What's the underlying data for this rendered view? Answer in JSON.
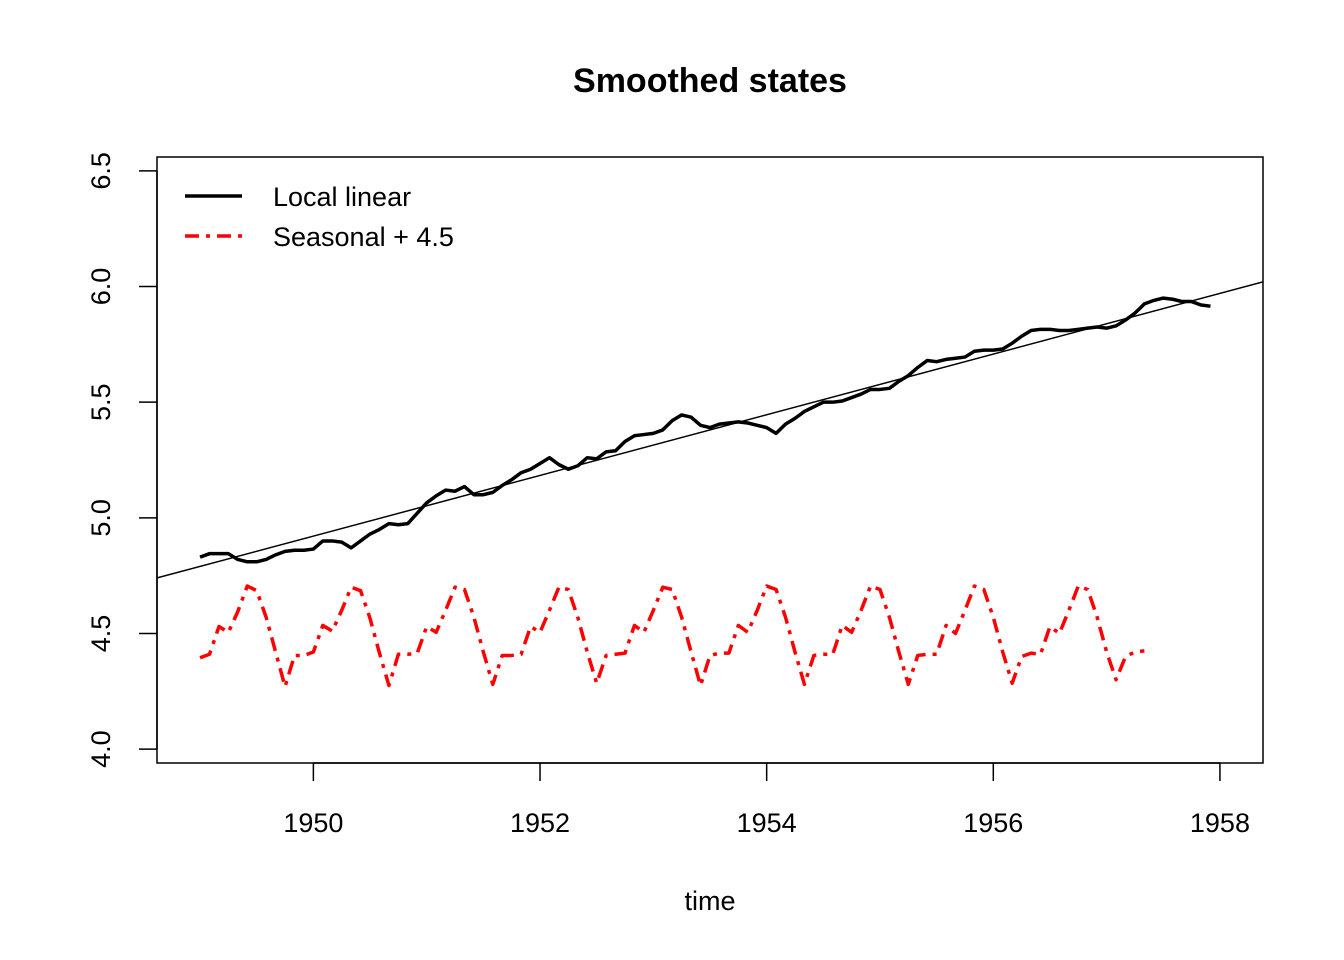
{
  "chart_data": {
    "type": "line",
    "title": "Smoothed states",
    "xlabel": "time",
    "ylabel": "",
    "xlim": [
      1948.62,
      1958.38
    ],
    "ylim": [
      3.94,
      6.56
    ],
    "xticks": [
      1950,
      1952,
      1954,
      1956,
      1958
    ],
    "yticks": [
      4.0,
      4.5,
      5.0,
      5.5,
      6.0,
      6.5
    ],
    "xtick_labels": [
      "1950",
      "1952",
      "1954",
      "1956",
      "1958"
    ],
    "ytick_labels": [
      "4.0",
      "4.5",
      "5.0",
      "5.5",
      "6.0",
      "6.5"
    ],
    "grid": false,
    "legend_position": "top-left",
    "x_start": 1949.0,
    "x_step": 0.083333,
    "series": [
      {
        "name": "Local linear",
        "color": "#000000",
        "style": "solid",
        "values": [
          4.83,
          4.845,
          4.845,
          4.845,
          4.82,
          4.81,
          4.81,
          4.82,
          4.84,
          4.855,
          4.86,
          4.86,
          4.865,
          4.9,
          4.9,
          4.895,
          4.87,
          4.9,
          4.93,
          4.95,
          4.975,
          4.97,
          4.975,
          5.02,
          5.065,
          5.095,
          5.12,
          5.115,
          5.135,
          5.1,
          5.1,
          5.11,
          5.14,
          5.165,
          5.195,
          5.21,
          5.235,
          5.26,
          5.23,
          5.21,
          5.225,
          5.26,
          5.255,
          5.285,
          5.29,
          5.33,
          5.355,
          5.36,
          5.365,
          5.38,
          5.42,
          5.445,
          5.435,
          5.4,
          5.39,
          5.405,
          5.41,
          5.415,
          5.41,
          5.4,
          5.39,
          5.365,
          5.405,
          5.43,
          5.46,
          5.48,
          5.5,
          5.5,
          5.505,
          5.52,
          5.535,
          5.555,
          5.555,
          5.56,
          5.59,
          5.615,
          5.65,
          5.68,
          5.675,
          5.685,
          5.69,
          5.695,
          5.72,
          5.725,
          5.725,
          5.73,
          5.755,
          5.785,
          5.81,
          5.815,
          5.815,
          5.81,
          5.81,
          5.815,
          5.82,
          5.825,
          5.82,
          5.83,
          5.855,
          5.885,
          5.925,
          5.94,
          5.95,
          5.945,
          5.935,
          5.935,
          5.92,
          5.915
        ]
      },
      {
        "name": "Seasonal + 4.5",
        "color": "#ff0000",
        "style": "dashed",
        "values": [
          4.395,
          4.41,
          4.53,
          4.505,
          4.595,
          4.705,
          4.685,
          4.57,
          4.42,
          4.27,
          4.405,
          4.405,
          4.42,
          4.535,
          4.51,
          4.6,
          4.7,
          4.685,
          4.565,
          4.415,
          4.275,
          4.41,
          4.41,
          4.415,
          4.53,
          4.505,
          4.6,
          4.7,
          4.69,
          4.57,
          4.42,
          4.28,
          4.405,
          4.405,
          4.41,
          4.53,
          4.505,
          4.6,
          4.7,
          4.69,
          4.57,
          4.42,
          4.285,
          4.405,
          4.41,
          4.415,
          4.535,
          4.505,
          4.6,
          4.7,
          4.69,
          4.57,
          4.42,
          4.275,
          4.405,
          4.415,
          4.415,
          4.535,
          4.505,
          4.6,
          4.705,
          4.69,
          4.57,
          4.42,
          4.28,
          4.405,
          4.41,
          4.41,
          4.535,
          4.505,
          4.6,
          4.705,
          4.69,
          4.57,
          4.42,
          4.28,
          4.405,
          4.41,
          4.41,
          4.535,
          4.5,
          4.6,
          4.705,
          4.69,
          4.57,
          4.42,
          4.285,
          4.4,
          4.415,
          4.41,
          4.53,
          4.5,
          4.6,
          4.705,
          4.69,
          4.57,
          4.42,
          4.3,
          4.4,
          4.42,
          4.425
        ]
      }
    ],
    "trend_line": {
      "name": "",
      "color": "#000000",
      "x": [
        1948.62,
        1958.38
      ],
      "y": [
        4.74,
        6.02
      ]
    }
  }
}
